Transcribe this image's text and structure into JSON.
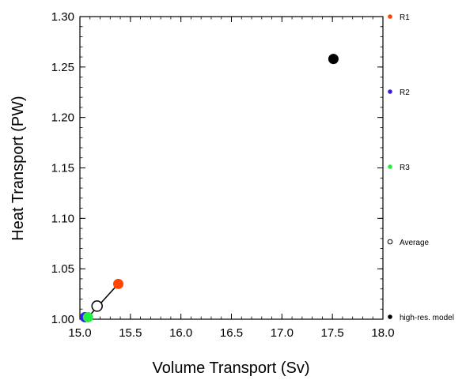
{
  "chart_data": {
    "type": "scatter",
    "xlabel": "Volume Transport (Sv)",
    "ylabel": "Heat Transport (PW)",
    "xlim": [
      15.0,
      18.0
    ],
    "ylim": [
      1.0,
      1.3
    ],
    "x_ticks": [
      "15.0",
      "15.5",
      "16.0",
      "16.5",
      "17.0",
      "17.5",
      "18.0"
    ],
    "y_ticks": [
      "1.00",
      "1.05",
      "1.10",
      "1.15",
      "1.20",
      "1.25",
      "1.30"
    ],
    "grid": false,
    "legend_position": "right",
    "series": [
      {
        "name": "R1",
        "color": "#ff4500",
        "marker": "filled-circle",
        "x": 15.38,
        "y": 1.035
      },
      {
        "name": "R2",
        "color": "#3320e0",
        "marker": "filled-circle",
        "x": 15.05,
        "y": 1.002
      },
      {
        "name": "R3",
        "color": "#22ee44",
        "marker": "filled-circle",
        "x": 15.08,
        "y": 1.002
      },
      {
        "name": "Average",
        "color": "#000000",
        "marker": "hollow-circle",
        "x": 15.17,
        "y": 1.013
      },
      {
        "name": "high-res. model",
        "color": "#000000",
        "marker": "filled-circle",
        "x": 17.51,
        "y": 1.258
      }
    ],
    "connector": {
      "from": "R1",
      "to": "R3",
      "color": "#000000"
    }
  }
}
